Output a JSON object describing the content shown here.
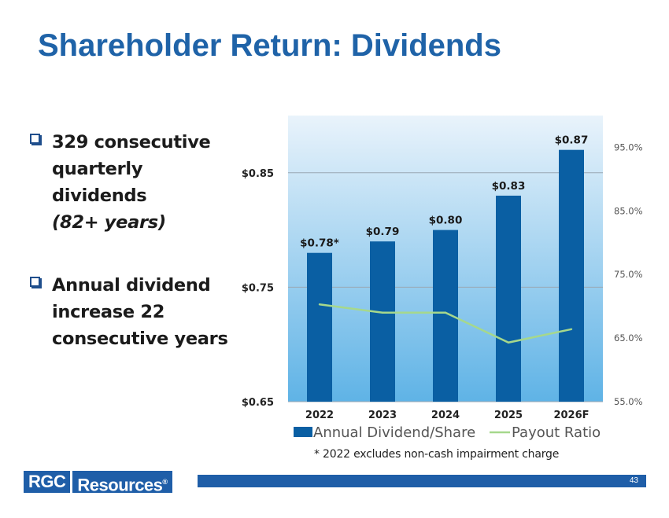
{
  "slide": {
    "title": "Shareholder Return: Dividends",
    "bullets": [
      {
        "lines": [
          "329 consecutive",
          "quarterly dividends"
        ],
        "emphasis": "(82+ years)"
      },
      {
        "lines": [
          "Annual dividend",
          "increase 22",
          "consecutive years"
        ],
        "emphasis": ""
      }
    ],
    "footnote": "* 2022 excludes non-cash impairment charge",
    "logo": {
      "part1": "RGC",
      "part2": "Resources",
      "mark": "®"
    },
    "page_number": "43"
  },
  "colors": {
    "title": "#1f63a8",
    "bar": "#0a5fa3",
    "line": "#a6d88c",
    "plot_bg_top": "#e9f3fb",
    "plot_bg_bottom": "#5fb3e6",
    "brand": "#1f5ea8"
  },
  "chart_data": {
    "type": "bar",
    "categories": [
      "2022",
      "2023",
      "2024",
      "2025",
      "2026F"
    ],
    "series": [
      {
        "name": "Annual Dividend/Share",
        "type": "bar",
        "axis": "left",
        "values": [
          0.78,
          0.79,
          0.8,
          0.83,
          0.87
        ],
        "labels": [
          "$0.78*",
          "$0.79",
          "$0.80",
          "$0.83",
          "$0.87"
        ]
      },
      {
        "name": "Payout Ratio",
        "type": "line",
        "axis": "right",
        "values": [
          70.3,
          69.0,
          69.0,
          64.3,
          66.4
        ]
      }
    ],
    "y_left": {
      "min": 0.65,
      "max": 0.9,
      "ticks": [
        0.65,
        0.75,
        0.85
      ],
      "tick_labels": [
        "$0.65",
        "$0.75",
        "$0.85"
      ]
    },
    "y_right": {
      "min": 55,
      "max": 100,
      "ticks": [
        55,
        65,
        75,
        85,
        95
      ],
      "tick_labels": [
        "55.0%",
        "65.0%",
        "75.0%",
        "85.0%",
        "95.0%"
      ]
    },
    "grid": true,
    "legend": {
      "position": "bottom",
      "entries": [
        "Annual Dividend/Share",
        "Payout Ratio"
      ]
    }
  }
}
